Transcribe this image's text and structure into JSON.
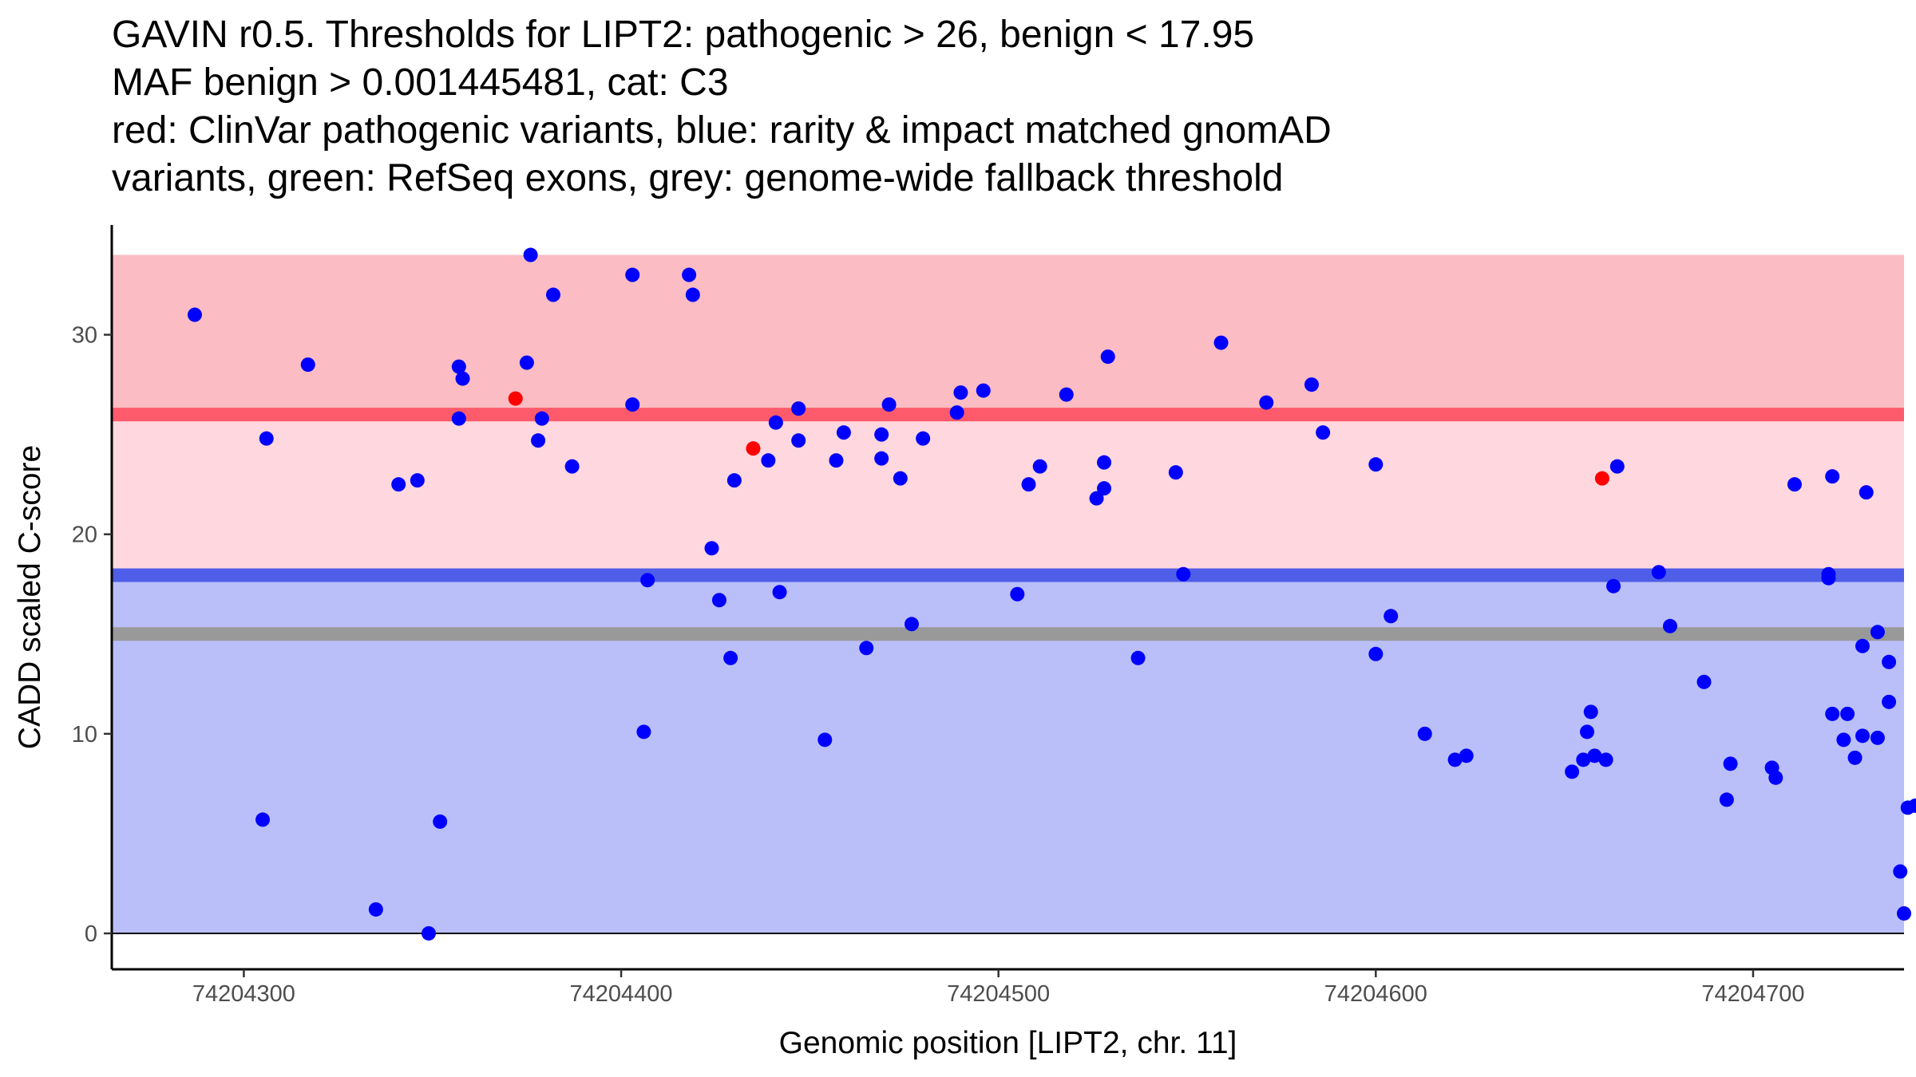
{
  "chart_data": {
    "type": "scatter",
    "title_lines": [
      "GAVIN r0.5. Thresholds for LIPT2: pathogenic > 26, benign < 17.95",
      "MAF benign > 0.001445481, cat: C3",
      "red: ClinVar pathogenic variants, blue: rarity & impact matched gnomAD",
      "variants, green: RefSeq exons, grey: genome-wide fallback threshold"
    ],
    "xlabel": "Genomic position [LIPT2, chr. 11]",
    "ylabel": "CADD scaled C-score",
    "xlim": [
      74204265,
      74204740
    ],
    "ylim": [
      -1.8,
      35.5
    ],
    "x_ticks": [
      74204300,
      74204400,
      74204500,
      74204600,
      74204700
    ],
    "x_tick_labels": [
      "74204300",
      "74204400",
      "74204500",
      "74204600",
      "74204700"
    ],
    "y_ticks": [
      0,
      10,
      20,
      30
    ],
    "y_tick_labels": [
      "0",
      "10",
      "20",
      "30"
    ],
    "bands": [
      {
        "name": "pathogenic-region",
        "ymin": 26,
        "ymax": 34,
        "color": "#fbbcc3"
      },
      {
        "name": "intermediate-region",
        "ymin": 17.95,
        "ymax": 26,
        "color": "#ffd7de"
      },
      {
        "name": "benign-region",
        "ymin": 0,
        "ymax": 17.95,
        "color": "#babff9"
      }
    ],
    "threshold_lines": [
      {
        "name": "pathogenic-threshold",
        "y": 26,
        "color": "#fd5b6c"
      },
      {
        "name": "benign-threshold",
        "y": 17.95,
        "color": "#4e5ee8"
      },
      {
        "name": "fallback-threshold",
        "y": 15,
        "color": "#999999"
      }
    ],
    "series": [
      {
        "name": "ClinVar pathogenic",
        "color": "#ff0000",
        "points": [
          [
            74204372,
            26.8
          ],
          [
            74204435,
            24.3
          ],
          [
            74204660,
            22.8
          ]
        ]
      },
      {
        "name": "gnomAD matched",
        "color": "#0000ff",
        "points": [
          [
            74204287,
            31.0
          ],
          [
            74204305,
            5.7
          ],
          [
            74204306,
            24.8
          ],
          [
            74204317,
            28.5
          ],
          [
            74204335,
            1.2
          ],
          [
            74204341,
            22.5
          ],
          [
            74204346,
            22.7
          ],
          [
            74204349,
            0.0
          ],
          [
            74204352,
            5.6
          ],
          [
            74204357,
            28.4
          ],
          [
            74204357,
            25.8
          ],
          [
            74204358,
            27.8
          ],
          [
            74204376,
            34.0
          ],
          [
            74204375,
            28.6
          ],
          [
            74204378,
            24.7
          ],
          [
            74204379,
            25.8
          ],
          [
            74204382,
            32.0
          ],
          [
            74204387,
            23.4
          ],
          [
            74204403,
            33.0
          ],
          [
            74204403,
            26.5
          ],
          [
            74204406,
            10.1
          ],
          [
            74204407,
            17.7
          ],
          [
            74204418,
            33.0
          ],
          [
            74204419,
            32.0
          ],
          [
            74204424,
            19.3
          ],
          [
            74204426,
            16.7
          ],
          [
            74204429,
            13.8
          ],
          [
            74204430,
            22.7
          ],
          [
            74204439,
            23.7
          ],
          [
            74204441,
            25.6
          ],
          [
            74204442,
            17.1
          ],
          [
            74204447,
            24.7
          ],
          [
            74204447,
            26.3
          ],
          [
            74204454,
            9.7
          ],
          [
            74204457,
            23.7
          ],
          [
            74204459,
            25.1
          ],
          [
            74204465,
            14.3
          ],
          [
            74204469,
            25.0
          ],
          [
            74204469,
            23.8
          ],
          [
            74204471,
            26.5
          ],
          [
            74204474,
            22.8
          ],
          [
            74204477,
            15.5
          ],
          [
            74204480,
            24.8
          ],
          [
            74204489,
            26.1
          ],
          [
            74204490,
            27.1
          ],
          [
            74204496,
            27.2
          ],
          [
            74204505,
            17.0
          ],
          [
            74204508,
            22.5
          ],
          [
            74204511,
            23.4
          ],
          [
            74204518,
            27.0
          ],
          [
            74204526,
            21.8
          ],
          [
            74204528,
            23.6
          ],
          [
            74204528,
            22.3
          ],
          [
            74204529,
            28.9
          ],
          [
            74204537,
            13.8
          ],
          [
            74204547,
            23.1
          ],
          [
            74204549,
            18.0
          ],
          [
            74204559,
            29.6
          ],
          [
            74204571,
            26.6
          ],
          [
            74204583,
            27.5
          ],
          [
            74204586,
            25.1
          ],
          [
            74204600,
            23.5
          ],
          [
            74204600,
            14.0
          ],
          [
            74204604,
            15.9
          ],
          [
            74204613,
            10.0
          ],
          [
            74204621,
            8.7
          ],
          [
            74204624,
            8.9
          ],
          [
            74204652,
            8.1
          ],
          [
            74204655,
            8.7
          ],
          [
            74204656,
            10.1
          ],
          [
            74204657,
            11.1
          ],
          [
            74204658,
            8.9
          ],
          [
            74204661,
            8.7
          ],
          [
            74204663,
            17.4
          ],
          [
            74204664,
            23.4
          ],
          [
            74204675,
            18.1
          ],
          [
            74204678,
            15.4
          ],
          [
            74204687,
            12.6
          ],
          [
            74204693,
            6.7
          ],
          [
            74204694,
            8.5
          ],
          [
            74204705,
            8.3
          ],
          [
            74204706,
            7.8
          ],
          [
            74204711,
            22.5
          ],
          [
            74204720,
            18.0
          ],
          [
            74204720,
            17.8
          ],
          [
            74204721,
            22.9
          ],
          [
            74204721,
            11.0
          ],
          [
            74204724,
            9.7
          ],
          [
            74204725,
            11.0
          ],
          [
            74204727,
            8.8
          ],
          [
            74204729,
            14.4
          ],
          [
            74204729,
            9.9
          ],
          [
            74204730,
            22.1
          ],
          [
            74204733,
            9.8
          ],
          [
            74204733,
            15.1
          ],
          [
            74204736,
            13.6
          ],
          [
            74204736,
            11.6
          ],
          [
            74204739,
            3.1
          ],
          [
            74204740,
            1.0
          ],
          [
            74204741,
            6.3
          ],
          [
            74204743,
            6.4
          ]
        ]
      }
    ]
  }
}
